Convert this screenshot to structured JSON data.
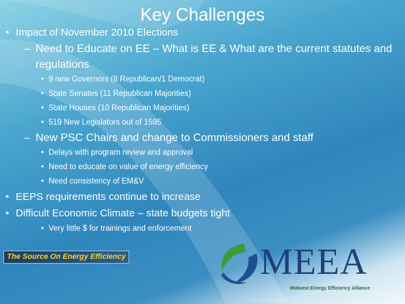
{
  "title": "Key Challenges",
  "bullets": [
    {
      "text": "Impact of November 2010 Elections",
      "children": [
        {
          "text": "Need to Educate on EE – What is EE & What are the current statutes and regulations",
          "children": [
            {
              "text": "9 new Governors (8 Republican/1 Democrat)"
            },
            {
              "text": "State Senates (11 Republican Majorities)"
            },
            {
              "text": "State Houses (10 Republican Majorities)"
            },
            {
              "text": "519 New Legislators out of 1595"
            }
          ]
        },
        {
          "text": "New PSC Chairs and change to Commissioners and staff",
          "children": [
            {
              "text": "Delays with program review and approval"
            },
            {
              "text": "Need to educate on value of energy efficiency"
            },
            {
              "text": "Need consistency of EM&V"
            }
          ]
        }
      ]
    },
    {
      "text": "EEPS requirements continue to increase"
    },
    {
      "text": "Difficult Economic Climate – state budgets tight",
      "children": [
        {
          "children": [
            {
              "text": "Very little $ for trainings and enforcement"
            }
          ]
        }
      ]
    }
  ],
  "footer": {
    "tagline": "The Source On Energy Efficiency",
    "logo": "MEEA",
    "logo_subtitle": "Midwest Energy Efficiency Alliance"
  }
}
